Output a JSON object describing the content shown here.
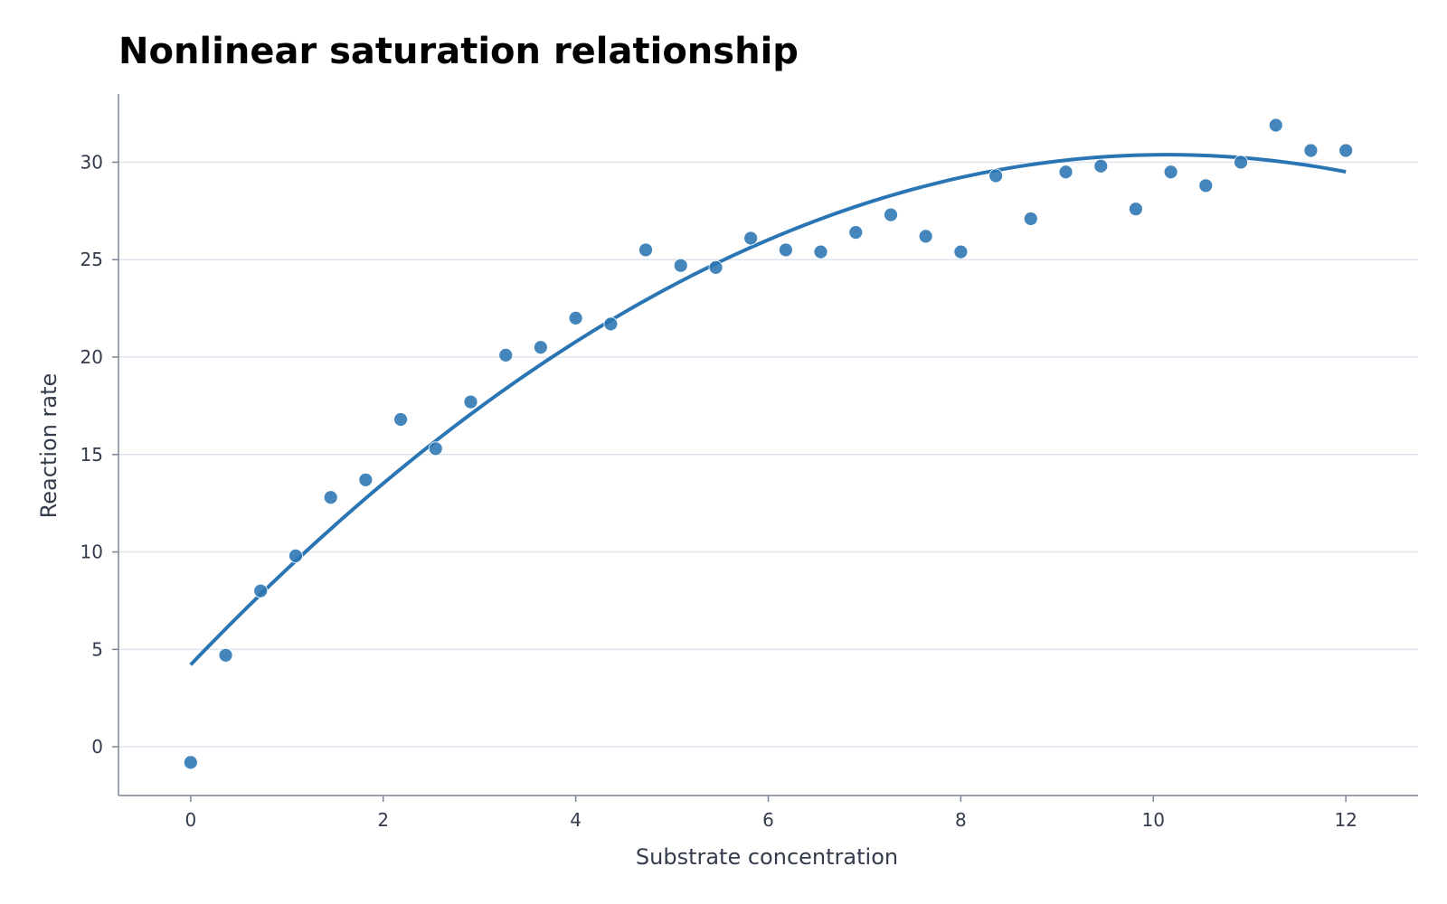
{
  "chart_data": {
    "type": "scatter",
    "title": "Nonlinear saturation relationship",
    "xlabel": "Substrate concentration",
    "ylabel": "Reaction rate",
    "xlim": [
      -0.75,
      12.75
    ],
    "ylim": [
      -2.5,
      33.5
    ],
    "xticks": [
      0,
      2,
      4,
      6,
      8,
      10,
      12
    ],
    "yticks": [
      0,
      5,
      10,
      15,
      20,
      25,
      30
    ],
    "grid": "horizontal",
    "colors": {
      "points": "#2a75b3",
      "fit": "#2a75b3"
    },
    "series": [
      {
        "kind": "scatter",
        "x": [
          0.0,
          0.364,
          0.727,
          1.091,
          1.455,
          1.818,
          2.182,
          2.545,
          2.909,
          3.273,
          3.636,
          4.0,
          4.364,
          4.727,
          5.091,
          5.455,
          5.818,
          6.182,
          6.545,
          6.909,
          7.273,
          7.636,
          8.0,
          8.364,
          8.727,
          9.091,
          9.455,
          9.818,
          10.182,
          10.545,
          10.909,
          11.273,
          11.636,
          12.0
        ],
        "y": [
          -0.8,
          4.7,
          8.0,
          9.8,
          12.8,
          13.7,
          16.8,
          15.3,
          17.7,
          20.1,
          20.5,
          22.0,
          21.7,
          25.5,
          24.7,
          24.6,
          26.1,
          25.5,
          25.4,
          26.4,
          27.3,
          26.2,
          25.4,
          29.3,
          27.1,
          29.5,
          29.8,
          27.6,
          29.5,
          28.8,
          30.0,
          31.9,
          30.6,
          30.6
        ]
      },
      {
        "kind": "line",
        "fit_quadratic": {
          "a": -0.2544,
          "b": 5.161,
          "c": 4.21
        },
        "x_range": [
          0,
          12
        ]
      }
    ]
  }
}
